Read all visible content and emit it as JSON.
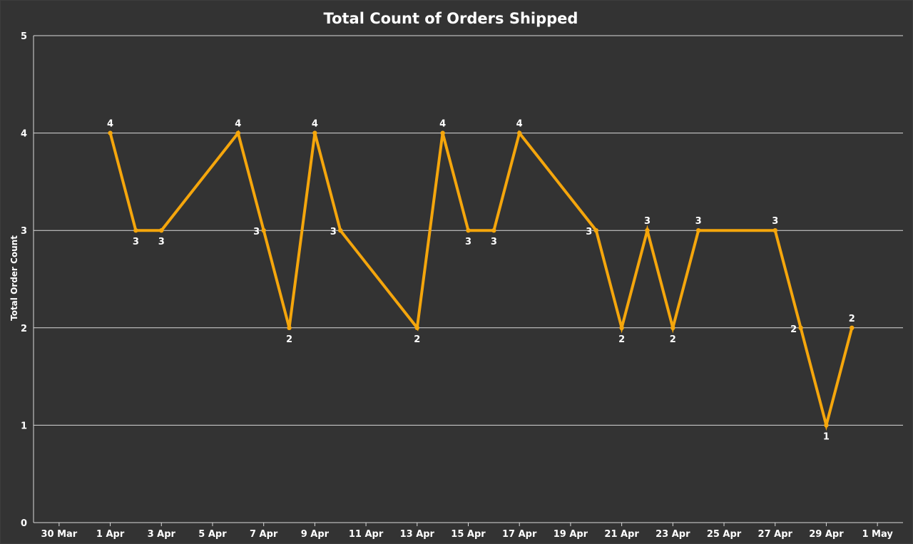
{
  "chart_data": {
    "type": "line",
    "title": "Total Count of Orders Shipped",
    "xlabel": "",
    "ylabel": "Total Order Count",
    "ylim": [
      0,
      5
    ],
    "yticks": [
      0,
      1,
      2,
      3,
      4,
      5
    ],
    "xlim": [
      "2025-03-29",
      "2025-05-02"
    ],
    "xticks": [
      {
        "date": "2025-03-30",
        "label": "30 Mar"
      },
      {
        "date": "2025-04-01",
        "label": "1 Apr"
      },
      {
        "date": "2025-04-03",
        "label": "3 Apr"
      },
      {
        "date": "2025-04-05",
        "label": "5 Apr"
      },
      {
        "date": "2025-04-07",
        "label": "7 Apr"
      },
      {
        "date": "2025-04-09",
        "label": "9 Apr"
      },
      {
        "date": "2025-04-11",
        "label": "11 Apr"
      },
      {
        "date": "2025-04-13",
        "label": "13 Apr"
      },
      {
        "date": "2025-04-15",
        "label": "15 Apr"
      },
      {
        "date": "2025-04-17",
        "label": "17 Apr"
      },
      {
        "date": "2025-04-19",
        "label": "19 Apr"
      },
      {
        "date": "2025-04-21",
        "label": "21 Apr"
      },
      {
        "date": "2025-04-23",
        "label": "23 Apr"
      },
      {
        "date": "2025-04-25",
        "label": "25 Apr"
      },
      {
        "date": "2025-04-27",
        "label": "27 Apr"
      },
      {
        "date": "2025-04-29",
        "label": "29 Apr"
      },
      {
        "date": "2025-05-01",
        "label": "1 May"
      }
    ],
    "grid": "horizontal",
    "series": [
      {
        "color": "#f5a60c",
        "points": [
          {
            "x": "2025-04-01",
            "y": 4
          },
          {
            "x": "2025-04-02",
            "y": 3
          },
          {
            "x": "2025-04-03",
            "y": 3
          },
          {
            "x": "2025-04-06",
            "y": 4
          },
          {
            "x": "2025-04-07",
            "y": 3
          },
          {
            "x": "2025-04-08",
            "y": 2
          },
          {
            "x": "2025-04-09",
            "y": 4
          },
          {
            "x": "2025-04-10",
            "y": 3
          },
          {
            "x": "2025-04-13",
            "y": 2
          },
          {
            "x": "2025-04-14",
            "y": 4
          },
          {
            "x": "2025-04-15",
            "y": 3
          },
          {
            "x": "2025-04-16",
            "y": 3
          },
          {
            "x": "2025-04-17",
            "y": 4
          },
          {
            "x": "2025-04-20",
            "y": 3
          },
          {
            "x": "2025-04-21",
            "y": 2
          },
          {
            "x": "2025-04-22",
            "y": 3
          },
          {
            "x": "2025-04-23",
            "y": 2
          },
          {
            "x": "2025-04-24",
            "y": 3
          },
          {
            "x": "2025-04-27",
            "y": 3
          },
          {
            "x": "2025-04-28",
            "y": 2
          },
          {
            "x": "2025-04-29",
            "y": 1
          },
          {
            "x": "2025-04-30",
            "y": 2
          }
        ]
      }
    ]
  },
  "colors": {
    "background": "#333333",
    "line": "#f5a60c",
    "grid": "#d9d9d9",
    "text": "#ffffff"
  }
}
